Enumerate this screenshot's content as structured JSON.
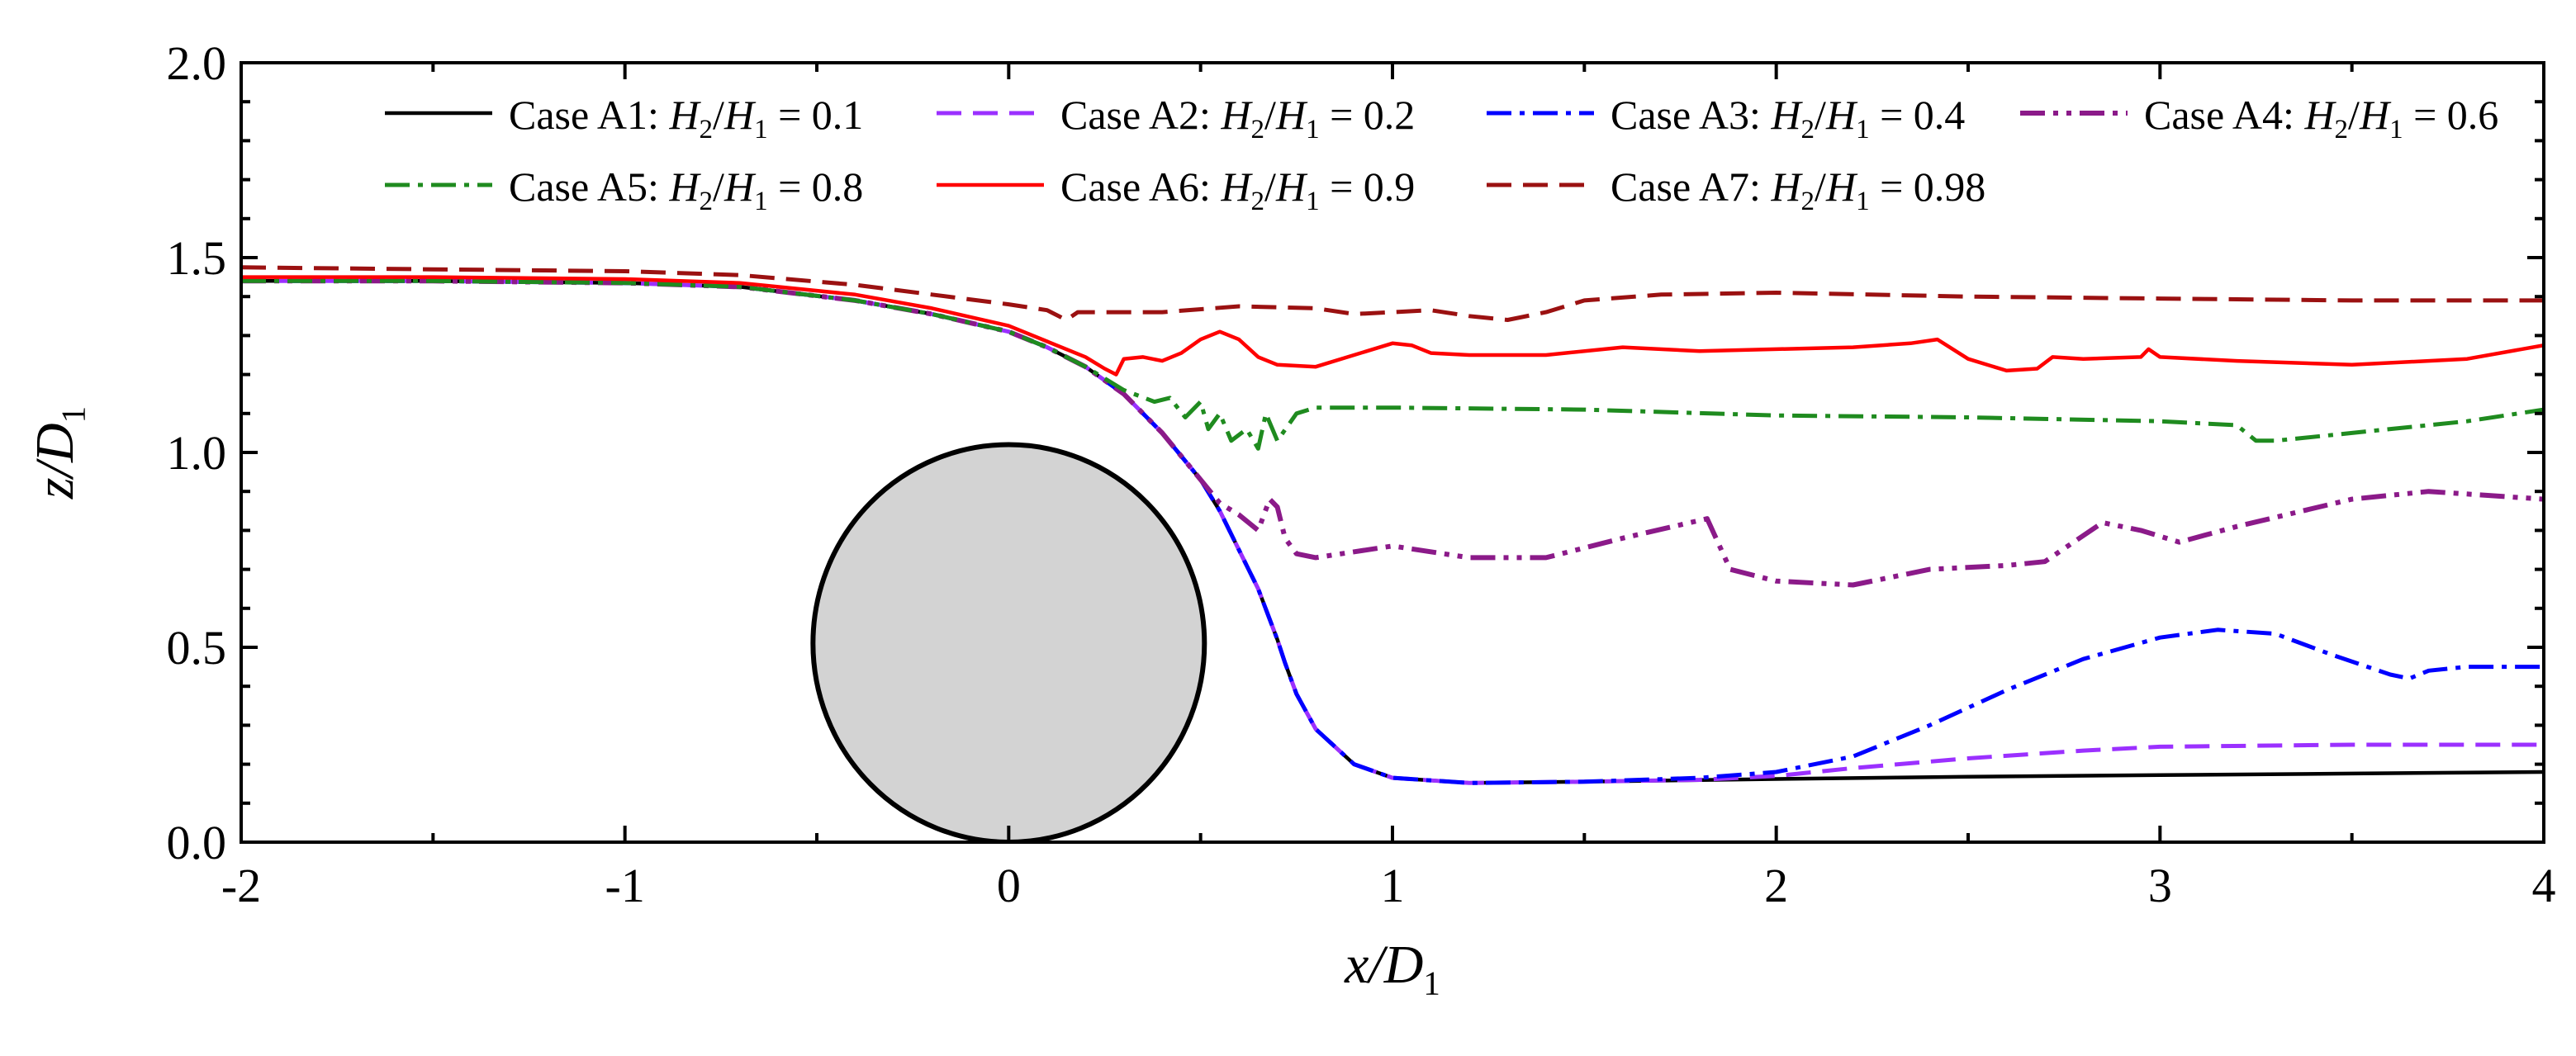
{
  "chart_data": {
    "type": "line",
    "title": "",
    "xlabel": {
      "main": "x/D",
      "sub": "1"
    },
    "ylabel": {
      "main": "z/D",
      "sub": "1"
    },
    "xlim": [
      -2,
      4
    ],
    "ylim": [
      0,
      2
    ],
    "x_ticks": [
      {
        "value": -2,
        "label": "-2"
      },
      {
        "value": -1,
        "label": "-1"
      },
      {
        "value": 0,
        "label": "0"
      },
      {
        "value": 1,
        "label": "1"
      },
      {
        "value": 2,
        "label": "2"
      },
      {
        "value": 3,
        "label": "3"
      },
      {
        "value": 4,
        "label": "4"
      }
    ],
    "y_ticks": [
      {
        "value": 0,
        "label": "0.0"
      },
      {
        "value": 0.5,
        "label": "0.5"
      },
      {
        "value": 1,
        "label": "1.0"
      },
      {
        "value": 1.5,
        "label": "1.5"
      },
      {
        "value": 2,
        "label": "2.0"
      }
    ],
    "grid": false,
    "legend_position": "top",
    "cylinder": {
      "center_x": 0,
      "center_z": 0.51,
      "radius": 0.51,
      "fill": "#d3d3d3",
      "stroke": "#000000"
    },
    "series": [
      {
        "name": "Case A1",
        "ratio_text": "0.1",
        "color": "#000000",
        "dash": "solid",
        "x": [
          -2,
          -1.5,
          -1,
          -0.7,
          -0.4,
          -0.2,
          0,
          0.1,
          0.2,
          0.3,
          0.4,
          0.5,
          0.55,
          0.6,
          0.65,
          0.7,
          0.72,
          0.75,
          0.8,
          0.9,
          1.0,
          1.2,
          1.5,
          2.0,
          2.5,
          3.0,
          3.5,
          4.0
        ],
        "y": [
          1.44,
          1.44,
          1.435,
          1.425,
          1.39,
          1.355,
          1.31,
          1.27,
          1.22,
          1.15,
          1.05,
          0.93,
          0.85,
          0.75,
          0.65,
          0.52,
          0.46,
          0.38,
          0.29,
          0.2,
          0.165,
          0.152,
          0.155,
          0.162,
          0.168,
          0.172,
          0.176,
          0.18
        ]
      },
      {
        "name": "Case A2",
        "ratio_text": "0.2",
        "color": "#9b30ff",
        "dash": "dash",
        "x": [
          -2,
          -1.5,
          -1,
          -0.7,
          -0.4,
          -0.2,
          0,
          0.1,
          0.2,
          0.3,
          0.4,
          0.5,
          0.55,
          0.6,
          0.65,
          0.7,
          0.72,
          0.75,
          0.8,
          0.9,
          1.0,
          1.2,
          1.5,
          1.8,
          2.0,
          2.2,
          2.5,
          2.8,
          3.0,
          3.5,
          4.0
        ],
        "y": [
          1.44,
          1.44,
          1.435,
          1.425,
          1.39,
          1.355,
          1.31,
          1.27,
          1.22,
          1.15,
          1.05,
          0.93,
          0.85,
          0.75,
          0.65,
          0.52,
          0.46,
          0.38,
          0.29,
          0.2,
          0.165,
          0.152,
          0.155,
          0.16,
          0.17,
          0.19,
          0.215,
          0.235,
          0.245,
          0.25,
          0.25
        ]
      },
      {
        "name": "Case A3",
        "ratio_text": "0.4",
        "color": "#0000ff",
        "dash": "dashdot",
        "x": [
          -2,
          -1.5,
          -1,
          -0.7,
          -0.4,
          -0.2,
          0,
          0.1,
          0.2,
          0.3,
          0.4,
          0.5,
          0.55,
          0.6,
          0.65,
          0.7,
          0.72,
          0.75,
          0.8,
          0.9,
          1.0,
          1.2,
          1.5,
          1.8,
          2.0,
          2.2,
          2.4,
          2.6,
          2.8,
          3.0,
          3.15,
          3.3,
          3.45,
          3.6,
          3.65,
          3.7,
          3.8,
          4.0
        ],
        "y": [
          1.44,
          1.44,
          1.435,
          1.425,
          1.39,
          1.355,
          1.31,
          1.27,
          1.22,
          1.15,
          1.05,
          0.93,
          0.85,
          0.75,
          0.65,
          0.52,
          0.46,
          0.38,
          0.29,
          0.2,
          0.165,
          0.152,
          0.155,
          0.165,
          0.18,
          0.22,
          0.3,
          0.39,
          0.47,
          0.525,
          0.545,
          0.535,
          0.48,
          0.43,
          0.42,
          0.44,
          0.45,
          0.45
        ]
      },
      {
        "name": "Case A4",
        "ratio_text": "0.6",
        "color": "#8b1a89",
        "dash": "dashdotdot",
        "x": [
          -2,
          -1.5,
          -1,
          -0.7,
          -0.4,
          -0.2,
          0,
          0.1,
          0.2,
          0.3,
          0.4,
          0.5,
          0.55,
          0.6,
          0.65,
          0.68,
          0.7,
          0.72,
          0.75,
          0.8,
          1.0,
          1.2,
          1.4,
          1.6,
          1.82,
          1.88,
          2.0,
          2.2,
          2.4,
          2.6,
          2.7,
          2.85,
          2.95,
          3.05,
          3.2,
          3.5,
          3.7,
          3.85,
          4.0
        ],
        "y": [
          1.44,
          1.44,
          1.435,
          1.425,
          1.39,
          1.355,
          1.31,
          1.27,
          1.22,
          1.15,
          1.05,
          0.93,
          0.87,
          0.84,
          0.8,
          0.88,
          0.86,
          0.78,
          0.74,
          0.73,
          0.76,
          0.73,
          0.73,
          0.78,
          0.83,
          0.7,
          0.67,
          0.66,
          0.7,
          0.71,
          0.72,
          0.82,
          0.8,
          0.77,
          0.81,
          0.88,
          0.9,
          0.89,
          0.88
        ]
      },
      {
        "name": "Case A5",
        "ratio_text": "0.8",
        "color": "#1f8b1f",
        "dash": "dashdot",
        "x": [
          -2,
          -1.5,
          -1,
          -0.7,
          -0.4,
          -0.2,
          0,
          0.1,
          0.2,
          0.3,
          0.38,
          0.42,
          0.46,
          0.5,
          0.52,
          0.55,
          0.58,
          0.62,
          0.65,
          0.67,
          0.7,
          0.75,
          0.8,
          1.0,
          1.5,
          2.0,
          2.5,
          3.0,
          3.2,
          3.25,
          3.3,
          3.5,
          3.8,
          4.0
        ],
        "y": [
          1.44,
          1.44,
          1.435,
          1.425,
          1.39,
          1.355,
          1.31,
          1.27,
          1.22,
          1.16,
          1.13,
          1.14,
          1.09,
          1.13,
          1.06,
          1.1,
          1.03,
          1.06,
          1.01,
          1.1,
          1.03,
          1.1,
          1.115,
          1.115,
          1.11,
          1.095,
          1.09,
          1.08,
          1.07,
          1.03,
          1.03,
          1.05,
          1.08,
          1.11
        ]
      },
      {
        "name": "Case A6",
        "ratio_text": "0.9",
        "color": "#ff0000",
        "dash": "solid",
        "x": [
          -2,
          -1.5,
          -1,
          -0.7,
          -0.4,
          -0.2,
          0,
          0.1,
          0.2,
          0.25,
          0.28,
          0.3,
          0.35,
          0.4,
          0.45,
          0.5,
          0.55,
          0.6,
          0.65,
          0.7,
          0.8,
          0.9,
          1.0,
          1.05,
          1.1,
          1.2,
          1.4,
          1.6,
          1.8,
          2.0,
          2.2,
          2.35,
          2.42,
          2.5,
          2.6,
          2.68,
          2.72,
          2.8,
          2.95,
          2.97,
          3.0,
          3.2,
          3.5,
          3.8,
          4.0
        ],
        "y": [
          1.45,
          1.45,
          1.445,
          1.435,
          1.405,
          1.37,
          1.325,
          1.285,
          1.245,
          1.215,
          1.2,
          1.24,
          1.245,
          1.235,
          1.255,
          1.29,
          1.31,
          1.29,
          1.245,
          1.225,
          1.22,
          1.25,
          1.28,
          1.275,
          1.255,
          1.25,
          1.25,
          1.27,
          1.26,
          1.265,
          1.27,
          1.28,
          1.29,
          1.24,
          1.21,
          1.215,
          1.245,
          1.24,
          1.245,
          1.265,
          1.245,
          1.235,
          1.225,
          1.24,
          1.275
        ]
      },
      {
        "name": "Case A7",
        "ratio_text": "0.98",
        "color": "#9b1111",
        "dash": "dash",
        "x": [
          -2,
          -1.5,
          -1,
          -0.7,
          -0.4,
          -0.2,
          0,
          0.1,
          0.15,
          0.18,
          0.25,
          0.4,
          0.6,
          0.8,
          0.9,
          1.0,
          1.1,
          1.2,
          1.3,
          1.4,
          1.5,
          1.7,
          2.0,
          2.5,
          3.0,
          3.5,
          4.0
        ],
        "y": [
          1.475,
          1.47,
          1.465,
          1.455,
          1.43,
          1.405,
          1.38,
          1.365,
          1.34,
          1.36,
          1.36,
          1.36,
          1.375,
          1.37,
          1.355,
          1.36,
          1.365,
          1.35,
          1.34,
          1.36,
          1.39,
          1.405,
          1.41,
          1.4,
          1.395,
          1.39,
          1.39
        ]
      }
    ],
    "legend_ratio_label": {
      "h2": "H",
      "h2_sub": "2",
      "h1": "H",
      "h1_sub": "1",
      "equals": " = "
    }
  }
}
